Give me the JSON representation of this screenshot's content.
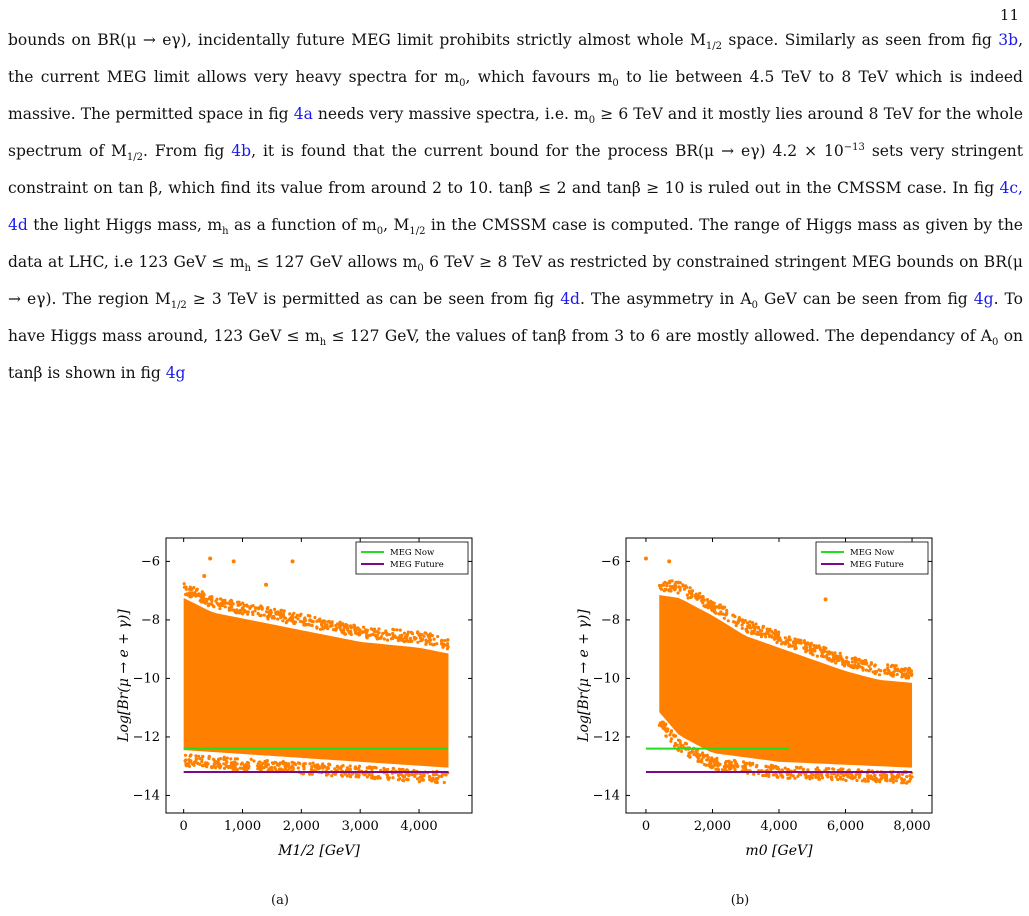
{
  "page": {
    "number": "11"
  },
  "text": {
    "p1": "bounds on BR(μ → eγ), incidentally future MEG limit prohibits strictly almost whole M",
    "p1_sub": "1/2",
    "p2": " space. Similarly as seen from fig ",
    "ref_3b": "3b",
    "p3": ", the current MEG limit allows very heavy spectra for m",
    "p3_sub": "0",
    "p4": ", which favours m",
    "p4_sub": "0",
    "p5": " to lie between 4.5 TeV to 8 TeV which is indeed massive. The permitted space in fig ",
    "ref_4a": "4a",
    "p6": " needs very massive spectra, i.e. m",
    "p6_sub": "0",
    "p7": " ≥ 6 TeV and it mostly lies around 8 TeV for the whole spectrum of M",
    "p7_sub": "1/2",
    "p8": ". From fig ",
    "ref_4b": "4b",
    "p9": ", it is found that the current bound for the process BR(μ → eγ) 4.2 × 10",
    "p9_sup": "−13",
    "p10": " sets very stringent constraint on tan β, which find its value from around 2 to 10. ",
    "p11": "tanβ ≤ 2 and tanβ ≥ 10 is ruled out in the CMSSM case. In fig ",
    "ref_4c4d": "4c, 4d",
    "p12": " the light Higgs mass, m",
    "p12_sub": "h",
    "p13": " as a function of m",
    "p13_sub": "0",
    "p14": ", M",
    "p14_sub": "1/2",
    "p15": " in the CMSSM case is computed. The range of Higgs mass as given by the data at LHC, i.e 123 GeV ≤ m",
    "p15_sub": "h",
    "p16": " ≤ 127 GeV allows m",
    "p16_sub": "0",
    "p17": " 6 TeV ≥ 8 TeV as restricted by constrained stringent MEG bounds on BR(μ → eγ). The region M",
    "p17_sub": "1/2",
    "p18": " ≥ 3 TeV is permitted as can be seen from fig ",
    "ref_4d": "4d",
    "p19": ". The asymmetry in A",
    "p19_sub": "0",
    "p20": " GeV can be seen from fig ",
    "ref_4g_a": "4g",
    "p21": ". To have Higgs mass around, 123 GeV ≤ m",
    "p21_sub": "h",
    "p22": " ≤ 127 GeV, the values of tanβ from 3 to 6 are mostly allowed. The dependancy of A",
    "p22_sub": "0",
    "p23": " on tanβ is shown in fig ",
    "ref_4g_b": "4g"
  },
  "colors": {
    "scatter": "#ff8000",
    "meg_now": "#22dd22",
    "meg_future": "#7a0a8a",
    "link": "#1a1aee"
  },
  "chart_data": [
    {
      "type": "scatter",
      "caption": "(a)",
      "xlabel": "M1/2 [GeV]",
      "ylabel": "Log[Br(μ → e + γ)]",
      "xlim": [
        -300,
        4900
      ],
      "ylim": [
        -14.6,
        -5.2
      ],
      "xticks": [
        0,
        1000,
        2000,
        3000,
        4000
      ],
      "xtick_labels": [
        "0",
        "1,000",
        "2,000",
        "3,000",
        "4,000"
      ],
      "yticks": [
        -14,
        -12,
        -10,
        -8,
        -6
      ],
      "ytick_labels": [
        "−14",
        "−12",
        "−10",
        "−8",
        "−6"
      ],
      "legend": {
        "position": "top-right",
        "entries": [
          "MEG Now",
          "MEG Future"
        ]
      },
      "grid": false,
      "series": [
        {
          "name": "MEG Now",
          "kind": "hline",
          "y": -12.4,
          "x": [
            0,
            4500
          ]
        },
        {
          "name": "MEG Future",
          "kind": "hline",
          "y": -13.2,
          "x": [
            0,
            4500
          ]
        }
      ],
      "scatter_region": {
        "x": [
          0,
          4500
        ],
        "upper_edge": [
          [
            0,
            -6.9
          ],
          [
            500,
            -7.4
          ],
          [
            1000,
            -7.6
          ],
          [
            2000,
            -8.0
          ],
          [
            3000,
            -8.4
          ],
          [
            4000,
            -8.6
          ],
          [
            4500,
            -8.8
          ]
        ],
        "lower_edge": [
          [
            0,
            -12.8
          ],
          [
            1500,
            -13.0
          ],
          [
            3000,
            -13.2
          ],
          [
            4500,
            -13.4
          ]
        ],
        "outliers": [
          [
            450,
            -5.9
          ],
          [
            850,
            -6.0
          ],
          [
            1850,
            -6.0
          ],
          [
            350,
            -6.5
          ],
          [
            1400,
            -6.8
          ]
        ]
      }
    },
    {
      "type": "scatter",
      "caption": "(b)",
      "xlabel": "m0 [GeV]",
      "ylabel": "Log[Br(μ → e + γ)]",
      "xlim": [
        -600,
        8600
      ],
      "ylim": [
        -14.6,
        -5.2
      ],
      "xticks": [
        0,
        2000,
        4000,
        6000,
        8000
      ],
      "xtick_labels": [
        "0",
        "2,000",
        "4,000",
        "6,000",
        "8,000"
      ],
      "yticks": [
        -14,
        -12,
        -10,
        -8,
        -6
      ],
      "ytick_labels": [
        "−14",
        "−12",
        "−10",
        "−8",
        "−6"
      ],
      "legend": {
        "position": "top-right",
        "entries": [
          "MEG Now",
          "MEG Future"
        ]
      },
      "grid": false,
      "series": [
        {
          "name": "MEG Now",
          "kind": "hline",
          "y": -12.4,
          "x": [
            0,
            4300
          ]
        },
        {
          "name": "MEG Future",
          "kind": "hline",
          "y": -13.2,
          "x": [
            0,
            8000
          ]
        }
      ],
      "scatter_region": {
        "x": [
          400,
          8000
        ],
        "upper_edge": [
          [
            400,
            -6.8
          ],
          [
            1000,
            -6.9
          ],
          [
            2000,
            -7.5
          ],
          [
            3000,
            -8.2
          ],
          [
            4000,
            -8.6
          ],
          [
            5000,
            -9.0
          ],
          [
            6000,
            -9.4
          ],
          [
            7000,
            -9.7
          ],
          [
            8000,
            -9.8
          ]
        ],
        "lower_edge": [
          [
            400,
            -11.5
          ],
          [
            1000,
            -12.3
          ],
          [
            2000,
            -12.9
          ],
          [
            4000,
            -13.2
          ],
          [
            6000,
            -13.3
          ],
          [
            8000,
            -13.4
          ]
        ],
        "outliers": [
          [
            0,
            -5.9
          ],
          [
            700,
            -6.0
          ],
          [
            5400,
            -7.3
          ],
          [
            1100,
            -7.6
          ]
        ]
      }
    }
  ]
}
